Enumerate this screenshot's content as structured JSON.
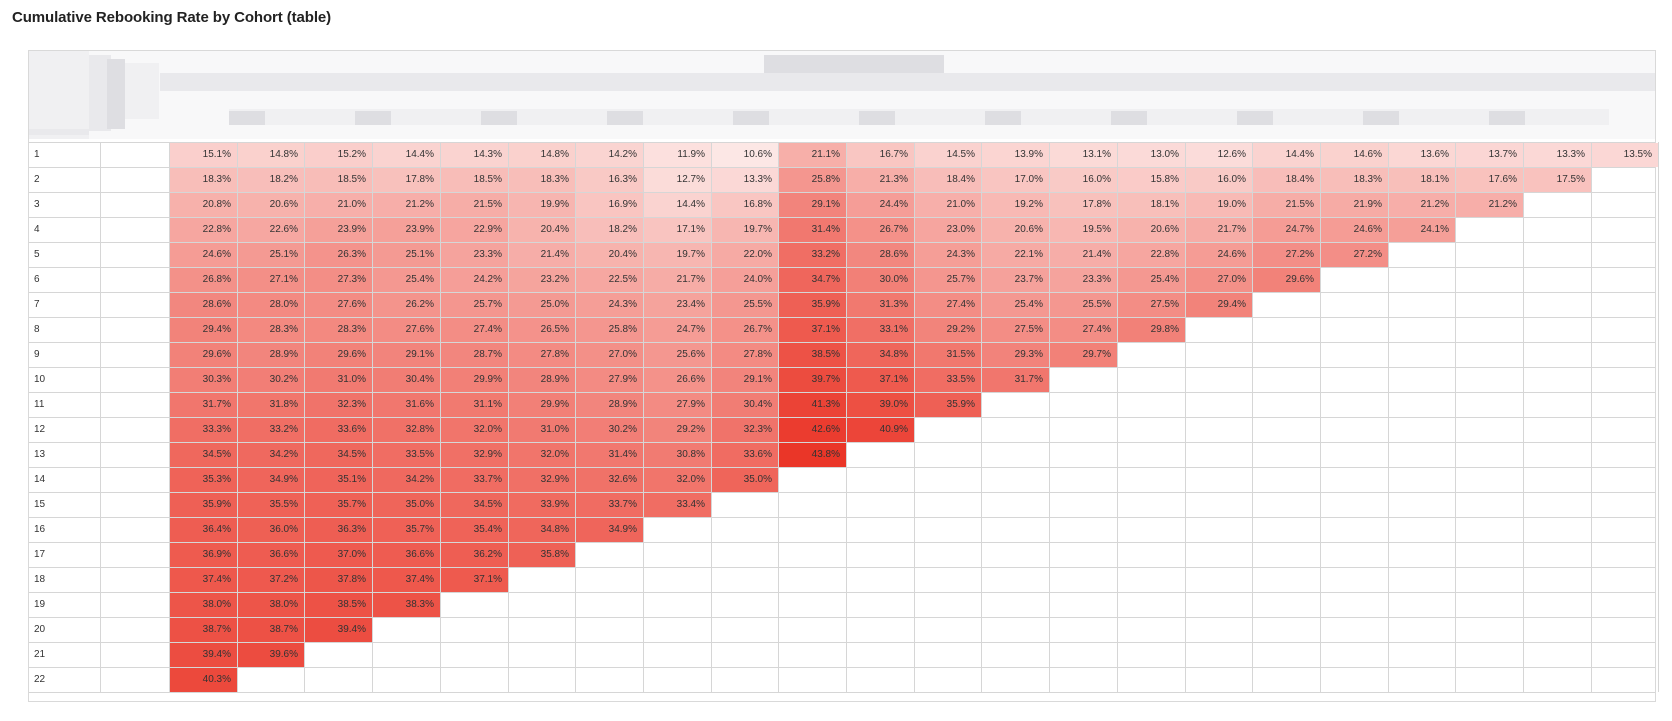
{
  "title": "Cumulative Rebooking Rate by Cohort (table)",
  "colors": {
    "low": "#ffffff",
    "high": "#ea3628",
    "grid": "#d6d6d6",
    "header_bg": "#f8f8f9"
  },
  "chart_data": {
    "type": "heatmap",
    "row_labels": [
      "1",
      "2",
      "3",
      "4",
      "5",
      "6",
      "7",
      "8",
      "9",
      "10",
      "11",
      "12",
      "13",
      "14",
      "15",
      "16",
      "17",
      "18",
      "19",
      "20",
      "21",
      "22"
    ],
    "color_range": [
      10.6,
      43.8
    ],
    "rows": [
      [
        "15.1%",
        "14.8%",
        "15.2%",
        "14.4%",
        "14.3%",
        "14.8%",
        "14.2%",
        "11.9%",
        "10.6%",
        "21.1%",
        "16.7%",
        "14.5%",
        "13.9%",
        "13.1%",
        "13.0%",
        "12.6%",
        "14.4%",
        "14.6%",
        "13.6%",
        "13.7%",
        "13.3%",
        "13.5%"
      ],
      [
        "18.3%",
        "18.2%",
        "18.5%",
        "17.8%",
        "18.5%",
        "18.3%",
        "16.3%",
        "12.7%",
        "13.3%",
        "25.8%",
        "21.3%",
        "18.4%",
        "17.0%",
        "16.0%",
        "15.8%",
        "16.0%",
        "18.4%",
        "18.3%",
        "18.1%",
        "17.6%",
        "17.5%"
      ],
      [
        "20.8%",
        "20.6%",
        "21.0%",
        "21.2%",
        "21.5%",
        "19.9%",
        "16.9%",
        "14.4%",
        "16.8%",
        "29.1%",
        "24.4%",
        "21.0%",
        "19.2%",
        "17.8%",
        "18.1%",
        "19.0%",
        "21.5%",
        "21.9%",
        "21.2%",
        "21.2%"
      ],
      [
        "22.8%",
        "22.6%",
        "23.9%",
        "23.9%",
        "22.9%",
        "20.4%",
        "18.2%",
        "17.1%",
        "19.7%",
        "31.4%",
        "26.7%",
        "23.0%",
        "20.6%",
        "19.5%",
        "20.6%",
        "21.7%",
        "24.7%",
        "24.6%",
        "24.1%"
      ],
      [
        "24.6%",
        "25.1%",
        "26.3%",
        "25.1%",
        "23.3%",
        "21.4%",
        "20.4%",
        "19.7%",
        "22.0%",
        "33.2%",
        "28.6%",
        "24.3%",
        "22.1%",
        "21.4%",
        "22.8%",
        "24.6%",
        "27.2%",
        "27.2%"
      ],
      [
        "26.8%",
        "27.1%",
        "27.3%",
        "25.4%",
        "24.2%",
        "23.2%",
        "22.5%",
        "21.7%",
        "24.0%",
        "34.7%",
        "30.0%",
        "25.7%",
        "23.7%",
        "23.3%",
        "25.4%",
        "27.0%",
        "29.6%"
      ],
      [
        "28.6%",
        "28.0%",
        "27.6%",
        "26.2%",
        "25.7%",
        "25.0%",
        "24.3%",
        "23.4%",
        "25.5%",
        "35.9%",
        "31.3%",
        "27.4%",
        "25.4%",
        "25.5%",
        "27.5%",
        "29.4%"
      ],
      [
        "29.4%",
        "28.3%",
        "28.3%",
        "27.6%",
        "27.4%",
        "26.5%",
        "25.8%",
        "24.7%",
        "26.7%",
        "37.1%",
        "33.1%",
        "29.2%",
        "27.5%",
        "27.4%",
        "29.8%"
      ],
      [
        "29.6%",
        "28.9%",
        "29.6%",
        "29.1%",
        "28.7%",
        "27.8%",
        "27.0%",
        "25.6%",
        "27.8%",
        "38.5%",
        "34.8%",
        "31.5%",
        "29.3%",
        "29.7%"
      ],
      [
        "30.3%",
        "30.2%",
        "31.0%",
        "30.4%",
        "29.9%",
        "28.9%",
        "27.9%",
        "26.6%",
        "29.1%",
        "39.7%",
        "37.1%",
        "33.5%",
        "31.7%"
      ],
      [
        "31.7%",
        "31.8%",
        "32.3%",
        "31.6%",
        "31.1%",
        "29.9%",
        "28.9%",
        "27.9%",
        "30.4%",
        "41.3%",
        "39.0%",
        "35.9%"
      ],
      [
        "33.3%",
        "33.2%",
        "33.6%",
        "32.8%",
        "32.0%",
        "31.0%",
        "30.2%",
        "29.2%",
        "32.3%",
        "42.6%",
        "40.9%"
      ],
      [
        "34.5%",
        "34.2%",
        "34.5%",
        "33.5%",
        "32.9%",
        "32.0%",
        "31.4%",
        "30.8%",
        "33.6%",
        "43.8%"
      ],
      [
        "35.3%",
        "34.9%",
        "35.1%",
        "34.2%",
        "33.7%",
        "32.9%",
        "32.6%",
        "32.0%",
        "35.0%"
      ],
      [
        "35.9%",
        "35.5%",
        "35.7%",
        "35.0%",
        "34.5%",
        "33.9%",
        "33.7%",
        "33.4%"
      ],
      [
        "36.4%",
        "36.0%",
        "36.3%",
        "35.7%",
        "35.4%",
        "34.8%",
        "34.9%"
      ],
      [
        "36.9%",
        "36.6%",
        "37.0%",
        "36.6%",
        "36.2%",
        "35.8%"
      ],
      [
        "37.4%",
        "37.2%",
        "37.8%",
        "37.4%",
        "37.1%"
      ],
      [
        "38.0%",
        "38.0%",
        "38.5%",
        "38.3%"
      ],
      [
        "38.7%",
        "38.7%",
        "39.4%"
      ],
      [
        "39.4%",
        "39.6%"
      ],
      [
        "40.3%"
      ]
    ]
  }
}
